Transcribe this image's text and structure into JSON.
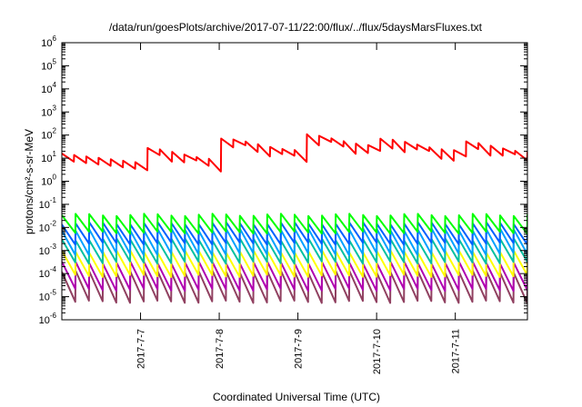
{
  "chart_data": {
    "type": "line",
    "title": "/data/run/goesPlots/archive/2017-07-11/22:00/flux/../flux/5daysMarsFluxes.txt",
    "xlabel": "Coordinated Universal Time (UTC)",
    "ylabel": "protons/cm²-s-sr-MeV",
    "y_scale": "log",
    "ylim": [
      1e-06,
      1000000.0
    ],
    "y_ticks": [
      {
        "base": "10",
        "exp": "6"
      },
      {
        "base": "10",
        "exp": "5"
      },
      {
        "base": "10",
        "exp": "4"
      },
      {
        "base": "10",
        "exp": "3"
      },
      {
        "base": "10",
        "exp": "2"
      },
      {
        "base": "10",
        "exp": "1"
      },
      {
        "base": "10",
        "exp": "0"
      },
      {
        "base": "10",
        "exp": "-1"
      },
      {
        "base": "10",
        "exp": "-2"
      },
      {
        "base": "10",
        "exp": "-3"
      },
      {
        "base": "10",
        "exp": "-4"
      },
      {
        "base": "10",
        "exp": "-5"
      },
      {
        "base": "10",
        "exp": "-6"
      }
    ],
    "x_range_days": [
      "2017-07-06 00:00",
      "2017-07-11 22:00"
    ],
    "x_ticks": [
      "2017-7-7",
      "2017-7-8",
      "2017-7-9",
      "2017-7-10",
      "2017-7-11"
    ],
    "grid": false,
    "series": [
      {
        "color": "#ff0000",
        "min": 6,
        "max": 80,
        "teeth": 38,
        "peaks_at_days": [
          "2017-07-08",
          "2017-07-09",
          "2017-07-10",
          "2017-07-11"
        ]
      },
      {
        "color": "#00ff00",
        "min": 0.006,
        "max": 0.035,
        "teeth": 34
      },
      {
        "color": "#0060ff",
        "min": 0.002,
        "max": 0.015,
        "teeth": 34
      },
      {
        "color": "#00a0ff",
        "min": 0.0007,
        "max": 0.008,
        "teeth": 34
      },
      {
        "color": "#00c0a0",
        "min": 0.0003,
        "max": 0.003,
        "teeth": 34
      },
      {
        "color": "#ffff00",
        "min": 8e-05,
        "max": 0.0009,
        "teeth": 34
      },
      {
        "color": "#b000b0",
        "min": 2e-05,
        "max": 0.0003,
        "teeth": 34
      },
      {
        "color": "#904060",
        "min": 6e-06,
        "max": 0.00012,
        "teeth": 34
      }
    ]
  }
}
